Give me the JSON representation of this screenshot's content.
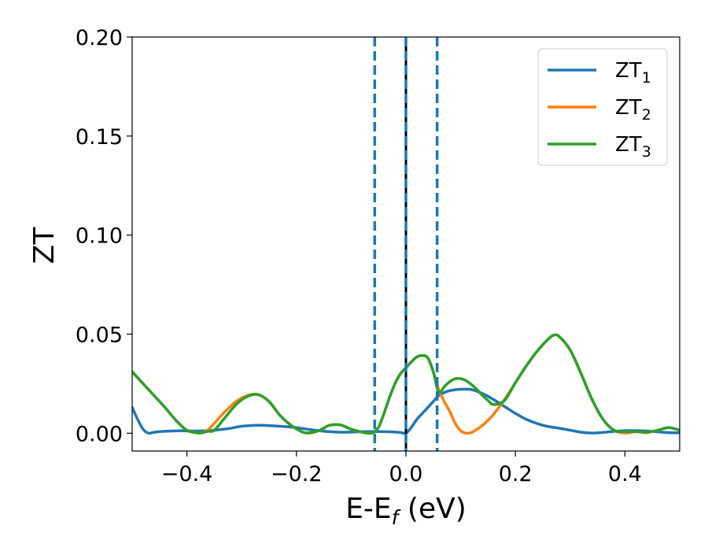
{
  "chart_data": {
    "type": "line",
    "xlabel": "E-E_f (eV)",
    "ylabel": "ZT",
    "xlim": [
      -0.5,
      0.5
    ],
    "ylim": [
      -0.009,
      0.2
    ],
    "x_ticks": [
      -0.4,
      -0.2,
      0.0,
      0.2,
      0.4
    ],
    "x_tick_labels": [
      "−0.4",
      "−0.2",
      "0.0",
      "0.2",
      "0.4"
    ],
    "y_ticks": [
      0.0,
      0.05,
      0.1,
      0.15,
      0.2
    ],
    "y_tick_labels": [
      "0.00",
      "0.05",
      "0.10",
      "0.15",
      "0.20"
    ],
    "grid": false,
    "legend_position": "top-right",
    "vertical_lines": [
      {
        "x": -0.057,
        "style": "dashed",
        "color": "#1f77b4"
      },
      {
        "x": 0.0,
        "style": "solid",
        "color": "#000000"
      },
      {
        "x": 0.0,
        "style": "dashed",
        "color": "#1f77b4"
      },
      {
        "x": 0.057,
        "style": "dashed",
        "color": "#1f77b4"
      }
    ],
    "series": [
      {
        "name": "ZT",
        "sub": "1",
        "color": "#1f77b4",
        "x": [
          -0.5,
          -0.49,
          -0.48,
          -0.47,
          -0.46,
          -0.44,
          -0.42,
          -0.4,
          -0.38,
          -0.35,
          -0.32,
          -0.3,
          -0.27,
          -0.25,
          -0.22,
          -0.2,
          -0.18,
          -0.15,
          -0.12,
          -0.1,
          -0.08,
          -0.06,
          -0.04,
          -0.02,
          -0.01,
          0.0,
          0.01,
          0.02,
          0.03,
          0.04,
          0.05,
          0.06,
          0.07,
          0.08,
          0.1,
          0.12,
          0.14,
          0.16,
          0.18,
          0.2,
          0.22,
          0.25,
          0.28,
          0.3,
          0.32,
          0.34,
          0.36,
          0.38,
          0.4,
          0.42,
          0.44,
          0.46,
          0.48,
          0.5
        ],
        "y": [
          0.013,
          0.007,
          0.002,
          0.0,
          0.0005,
          0.001,
          0.0012,
          0.0012,
          0.0011,
          0.0015,
          0.0025,
          0.0035,
          0.004,
          0.0038,
          0.0033,
          0.0028,
          0.002,
          0.001,
          0.0005,
          0.0006,
          0.0008,
          0.0009,
          0.0008,
          0.0006,
          0.0004,
          0.0,
          0.003,
          0.007,
          0.01,
          0.013,
          0.016,
          0.019,
          0.0205,
          0.0215,
          0.0222,
          0.022,
          0.02,
          0.017,
          0.0135,
          0.01,
          0.007,
          0.004,
          0.0025,
          0.0015,
          0.0005,
          0.0001,
          0.0004,
          0.0009,
          0.0013,
          0.0013,
          0.0011,
          0.0007,
          0.0003,
          0.0002
        ]
      },
      {
        "name": "ZT",
        "sub": "2",
        "color": "#ff7f0e",
        "x": [
          -0.5,
          -0.48,
          -0.46,
          -0.44,
          -0.42,
          -0.4,
          -0.38,
          -0.37,
          -0.36,
          -0.35,
          -0.33,
          -0.31,
          -0.29,
          -0.27,
          -0.25,
          -0.23,
          -0.21,
          -0.19,
          -0.18,
          -0.17,
          -0.16,
          -0.15,
          -0.14,
          -0.12,
          -0.1,
          -0.08,
          -0.07,
          -0.06,
          -0.05,
          -0.04,
          -0.03,
          -0.02,
          -0.01,
          0.0,
          0.01,
          0.02,
          0.03,
          0.04,
          0.05,
          0.06,
          0.07,
          0.08,
          0.09,
          0.1,
          0.11,
          0.12,
          0.13,
          0.14,
          0.15,
          0.16,
          0.18,
          0.2,
          0.22,
          0.24,
          0.26,
          0.27,
          0.28,
          0.3,
          0.32,
          0.34,
          0.36,
          0.38,
          0.4,
          0.42,
          0.44,
          0.46,
          0.48,
          0.5
        ],
        "y": [
          0.031,
          0.025,
          0.019,
          0.013,
          0.0065,
          0.0015,
          0.0001,
          0.0004,
          0.002,
          0.005,
          0.011,
          0.016,
          0.019,
          0.0195,
          0.016,
          0.009,
          0.004,
          0.0007,
          0.0,
          0.0003,
          0.0012,
          0.0025,
          0.004,
          0.0042,
          0.002,
          0.0005,
          0.0,
          0.0003,
          0.003,
          0.01,
          0.018,
          0.025,
          0.03,
          0.033,
          0.036,
          0.0385,
          0.0392,
          0.038,
          0.031,
          0.022,
          0.016,
          0.011,
          0.005,
          0.0012,
          0.0,
          0.0004,
          0.002,
          0.004,
          0.0065,
          0.0095,
          0.017,
          0.0255,
          0.034,
          0.0415,
          0.0475,
          0.0495,
          0.0488,
          0.042,
          0.03,
          0.017,
          0.007,
          0.0015,
          0.0001,
          0.0008,
          0.0003,
          0.0015,
          0.0028,
          0.0015
        ]
      },
      {
        "name": "ZT",
        "sub": "3",
        "color": "#2ca02c",
        "x": [
          -0.5,
          -0.48,
          -0.46,
          -0.44,
          -0.42,
          -0.4,
          -0.38,
          -0.37,
          -0.36,
          -0.35,
          -0.33,
          -0.31,
          -0.29,
          -0.27,
          -0.25,
          -0.23,
          -0.21,
          -0.19,
          -0.18,
          -0.17,
          -0.16,
          -0.15,
          -0.14,
          -0.12,
          -0.1,
          -0.08,
          -0.07,
          -0.06,
          -0.05,
          -0.04,
          -0.03,
          -0.02,
          -0.01,
          0.0,
          0.01,
          0.02,
          0.03,
          0.04,
          0.05,
          0.06,
          0.07,
          0.08,
          0.09,
          0.1,
          0.11,
          0.12,
          0.13,
          0.14,
          0.15,
          0.16,
          0.18,
          0.2,
          0.22,
          0.24,
          0.26,
          0.27,
          0.28,
          0.3,
          0.32,
          0.34,
          0.36,
          0.38,
          0.4,
          0.42,
          0.44,
          0.46,
          0.48,
          0.5
        ],
        "y": [
          0.031,
          0.025,
          0.019,
          0.013,
          0.0065,
          0.0015,
          0.0001,
          0.0004,
          0.001,
          0.0015,
          0.008,
          0.0145,
          0.0185,
          0.0195,
          0.016,
          0.009,
          0.004,
          0.0007,
          0.0002,
          0.0005,
          0.0012,
          0.0025,
          0.004,
          0.0042,
          0.002,
          0.0005,
          0.0,
          0.0003,
          0.003,
          0.01,
          0.018,
          0.025,
          0.03,
          0.033,
          0.036,
          0.0385,
          0.0392,
          0.038,
          0.031,
          0.0205,
          0.0235,
          0.026,
          0.0275,
          0.0275,
          0.0265,
          0.0245,
          0.022,
          0.019,
          0.0165,
          0.0145,
          0.0165,
          0.0255,
          0.034,
          0.0415,
          0.0475,
          0.0495,
          0.0488,
          0.042,
          0.03,
          0.017,
          0.007,
          0.0015,
          0.0008,
          0.0008,
          0.0005,
          0.0015,
          0.0028,
          0.0015
        ]
      }
    ]
  }
}
